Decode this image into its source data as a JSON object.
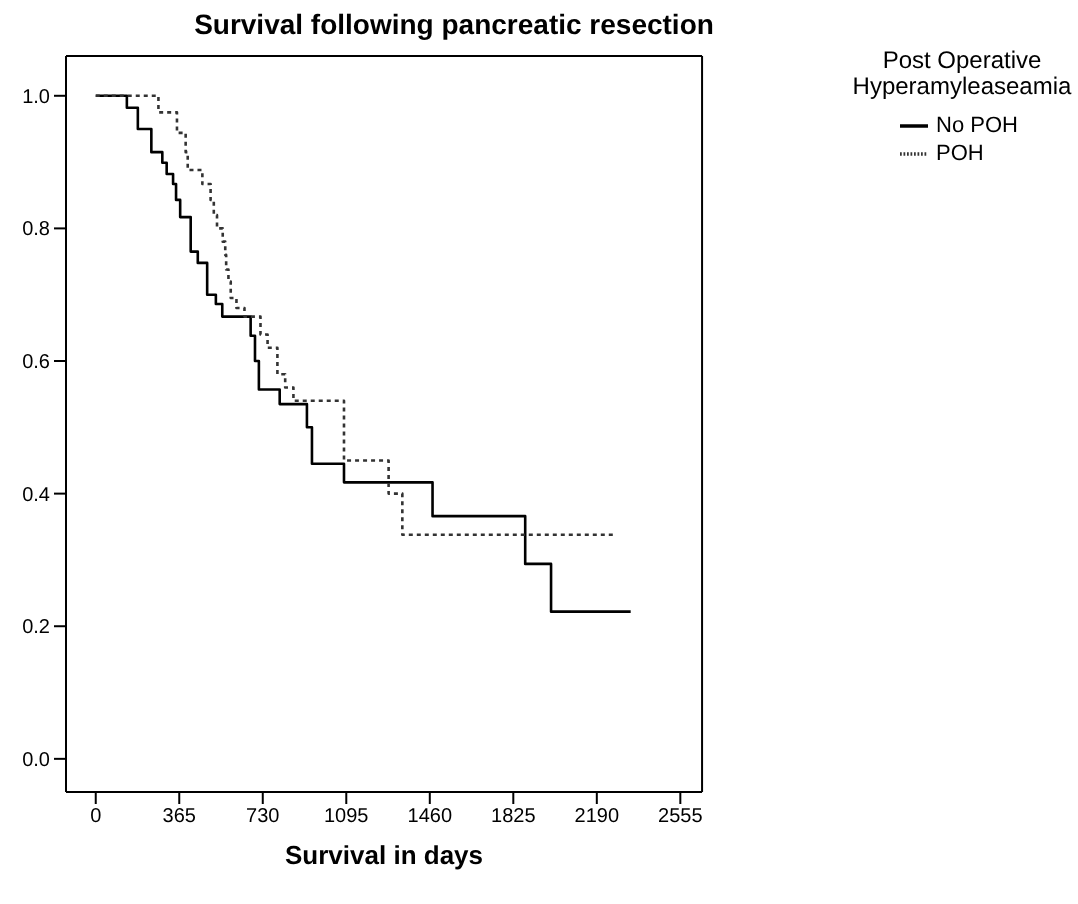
{
  "chart_data": {
    "type": "step",
    "title": "Survival following pancreatic resection",
    "xlabel": "Survival in days",
    "legend_title": "Post Operative Hyperamyleaseamia",
    "legend": "top right",
    "marker": "none",
    "xlim": [
      -130,
      2650
    ],
    "xticks": [
      0,
      365,
      730,
      1095,
      1460,
      1825,
      2190,
      2555
    ],
    "ylim": [
      -0.05,
      1.06
    ],
    "yticks": [
      {
        "value": 0,
        "label": "0.0"
      },
      {
        "value": 0.2,
        "label": "0.2"
      },
      {
        "value": 0.4,
        "label": "0.4"
      },
      {
        "value": 0.6,
        "label": "0.6"
      },
      {
        "value": 0.8,
        "label": "0.8"
      },
      {
        "value": 1,
        "label": "1.0"
      }
    ],
    "series": [
      {
        "name": "No POH",
        "color": "#000000",
        "line_style": "solid",
        "x": [
          0,
          136,
          184,
          243,
          291,
          310,
          338,
          351,
          369,
          415,
          446,
          487,
          525,
          553,
          677,
          696,
          713,
          804,
          923,
          945,
          1085,
          1472,
          1877,
          1990,
          2338
        ],
        "values": [
          1,
          0.982,
          0.95,
          0.915,
          0.899,
          0.882,
          0.867,
          0.843,
          0.817,
          0.765,
          0.748,
          0.7,
          0.686,
          0.667,
          0.638,
          0.6,
          0.557,
          0.535,
          0.5,
          0.445,
          0.417,
          0.366,
          0.294,
          0.222,
          0.222
        ]
      },
      {
        "name": "POH",
        "color": "#333333",
        "line_style": "dotted",
        "x": [
          0,
          274,
          355,
          393,
          402,
          466,
          502,
          516,
          530,
          555,
          566,
          570,
          580,
          590,
          615,
          650,
          720,
          751,
          794,
          828,
          864,
          1085,
          1280,
          1340,
          2260
        ],
        "values": [
          1,
          0.975,
          0.944,
          0.915,
          0.888,
          0.867,
          0.843,
          0.82,
          0.8,
          0.78,
          0.76,
          0.738,
          0.72,
          0.695,
          0.68,
          0.667,
          0.64,
          0.62,
          0.58,
          0.56,
          0.54,
          0.45,
          0.4,
          0.338,
          0.338
        ]
      }
    ]
  }
}
